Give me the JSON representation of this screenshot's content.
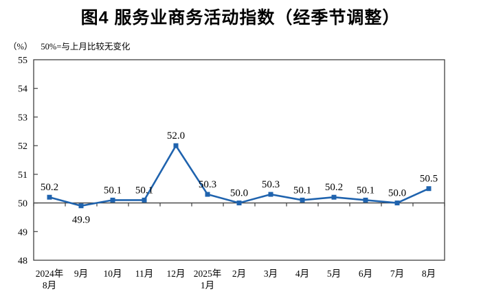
{
  "title": "图4 服务业商务活动指数（经季节调整）",
  "subtitle": {
    "unit": "（%）",
    "note": "50%=与上月比较无变化"
  },
  "chart_data": {
    "type": "line",
    "title": "图4 服务业商务活动指数（经季节调整）",
    "unit_label": "（%）",
    "note": "50%=与上月比较无变化",
    "categories": [
      "2024年|8月",
      "9月",
      "10月",
      "11月",
      "12月",
      "2025年|1月",
      "2月",
      "3月",
      "4月",
      "5月",
      "6月",
      "7月",
      "8月"
    ],
    "values": [
      50.2,
      49.9,
      50.1,
      50.1,
      52.0,
      50.3,
      50.0,
      50.3,
      50.1,
      50.2,
      50.1,
      50.0,
      50.5
    ],
    "value_labels": [
      "50.2",
      "49.9",
      "50.1",
      "50.1",
      "52.0",
      "50.3",
      "50.0",
      "50.3",
      "50.1",
      "50.2",
      "50.1",
      "50.0",
      "50.5"
    ],
    "label_placement": [
      "above",
      "below",
      "above",
      "above",
      "above",
      "above",
      "above",
      "above",
      "above",
      "above",
      "above",
      "above",
      "above"
    ],
    "ylim": [
      48,
      55
    ],
    "yticks": [
      48,
      49,
      50,
      51,
      52,
      53,
      54,
      55
    ],
    "reference_line_y": 50,
    "grid": false,
    "legend": "none",
    "line_color": "#1F63AE",
    "marker": "square",
    "axis_color": "#3F3F3F",
    "text_color": "#000000"
  }
}
